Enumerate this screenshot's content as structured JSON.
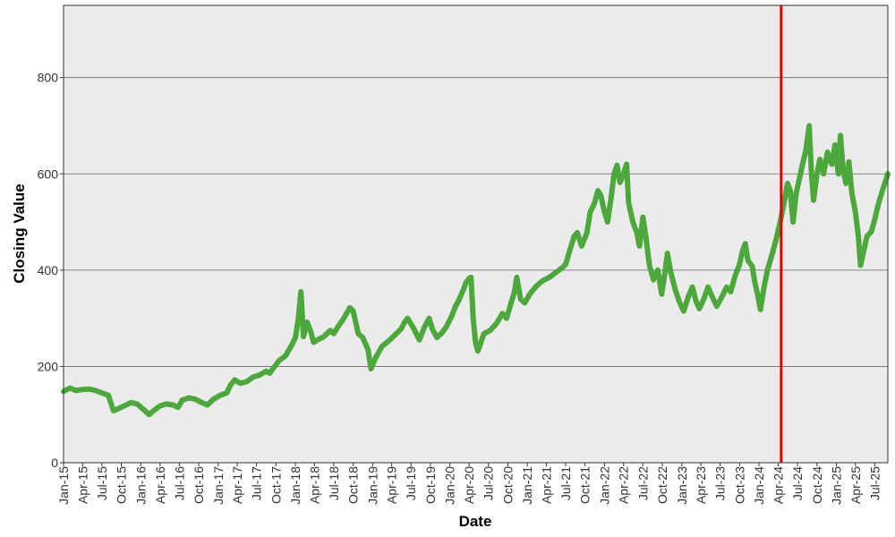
{
  "chart_data": {
    "type": "line",
    "xlabel": "Date",
    "ylabel": "Closing Value",
    "ylim": [
      0,
      950
    ],
    "xlim": [
      "2015-01-01",
      "2025-09-01"
    ],
    "y_ticks": [
      0,
      200,
      400,
      600,
      800
    ],
    "x_ticks": [
      {
        "date": "2015-01-01",
        "label": "Jan-15"
      },
      {
        "date": "2015-04-01",
        "label": "Apr-15"
      },
      {
        "date": "2015-07-01",
        "label": "Jul-15"
      },
      {
        "date": "2015-10-01",
        "label": "Oct-15"
      },
      {
        "date": "2016-01-01",
        "label": "Jan-16"
      },
      {
        "date": "2016-04-01",
        "label": "Apr-16"
      },
      {
        "date": "2016-07-01",
        "label": "Jul-16"
      },
      {
        "date": "2016-10-01",
        "label": "Oct-16"
      },
      {
        "date": "2017-01-01",
        "label": "Jan-17"
      },
      {
        "date": "2017-04-01",
        "label": "Apr-17"
      },
      {
        "date": "2017-07-01",
        "label": "Jul-17"
      },
      {
        "date": "2017-10-01",
        "label": "Oct-17"
      },
      {
        "date": "2018-01-01",
        "label": "Jan-18"
      },
      {
        "date": "2018-04-01",
        "label": "Apr-18"
      },
      {
        "date": "2018-07-01",
        "label": "Jul-18"
      },
      {
        "date": "2018-10-01",
        "label": "Oct-18"
      },
      {
        "date": "2019-01-01",
        "label": "Jan-19"
      },
      {
        "date": "2019-04-01",
        "label": "Apr-19"
      },
      {
        "date": "2019-07-01",
        "label": "Jul-19"
      },
      {
        "date": "2019-10-01",
        "label": "Oct-19"
      },
      {
        "date": "2020-01-01",
        "label": "Jan-20"
      },
      {
        "date": "2020-04-01",
        "label": "Apr-20"
      },
      {
        "date": "2020-07-01",
        "label": "Jul-20"
      },
      {
        "date": "2020-10-01",
        "label": "Oct-20"
      },
      {
        "date": "2021-01-01",
        "label": "Jan-21"
      },
      {
        "date": "2021-04-01",
        "label": "Apr-21"
      },
      {
        "date": "2021-07-01",
        "label": "Jul-21"
      },
      {
        "date": "2021-10-01",
        "label": "Oct-21"
      },
      {
        "date": "2022-01-01",
        "label": "Jan-22"
      },
      {
        "date": "2022-04-01",
        "label": "Apr-22"
      },
      {
        "date": "2022-07-01",
        "label": "Jul-22"
      },
      {
        "date": "2022-10-01",
        "label": "Oct-22"
      },
      {
        "date": "2023-01-01",
        "label": "Jan-23"
      },
      {
        "date": "2023-04-01",
        "label": "Apr-23"
      },
      {
        "date": "2023-07-01",
        "label": "Jul-23"
      },
      {
        "date": "2023-10-01",
        "label": "Oct-23"
      },
      {
        "date": "2024-01-01",
        "label": "Jan-24"
      },
      {
        "date": "2024-04-01",
        "label": "Apr-24"
      },
      {
        "date": "2024-07-01",
        "label": "Jul-24"
      },
      {
        "date": "2024-10-01",
        "label": "Oct-24"
      },
      {
        "date": "2025-01-01",
        "label": "Jan-25"
      },
      {
        "date": "2025-04-01",
        "label": "Apr-25"
      },
      {
        "date": "2025-07-01",
        "label": "Jul-25"
      }
    ],
    "grid": "horizontal",
    "series": [
      {
        "color": "#4ca83a",
        "points": [
          [
            "2015-01-01",
            148
          ],
          [
            "2015-02-01",
            155
          ],
          [
            "2015-03-01",
            150
          ],
          [
            "2015-04-01",
            152
          ],
          [
            "2015-05-01",
            153
          ],
          [
            "2015-06-01",
            150
          ],
          [
            "2015-07-01",
            145
          ],
          [
            "2015-08-01",
            140
          ],
          [
            "2015-08-25",
            108
          ],
          [
            "2015-09-15",
            112
          ],
          [
            "2015-10-15",
            118
          ],
          [
            "2015-11-15",
            125
          ],
          [
            "2015-12-15",
            122
          ],
          [
            "2016-01-15",
            110
          ],
          [
            "2016-02-10",
            100
          ],
          [
            "2016-03-01",
            108
          ],
          [
            "2016-04-01",
            118
          ],
          [
            "2016-05-01",
            122
          ],
          [
            "2016-06-01",
            120
          ],
          [
            "2016-06-25",
            115
          ],
          [
            "2016-07-15",
            130
          ],
          [
            "2016-08-15",
            135
          ],
          [
            "2016-09-15",
            132
          ],
          [
            "2016-10-15",
            125
          ],
          [
            "2016-11-10",
            120
          ],
          [
            "2016-12-10",
            132
          ],
          [
            "2017-01-10",
            140
          ],
          [
            "2017-02-10",
            145
          ],
          [
            "2017-03-01",
            162
          ],
          [
            "2017-03-20",
            172
          ],
          [
            "2017-04-15",
            165
          ],
          [
            "2017-05-15",
            168
          ],
          [
            "2017-06-15",
            178
          ],
          [
            "2017-07-15",
            182
          ],
          [
            "2017-08-15",
            190
          ],
          [
            "2017-09-01",
            186
          ],
          [
            "2017-09-20",
            197
          ],
          [
            "2017-10-15",
            212
          ],
          [
            "2017-11-15",
            222
          ],
          [
            "2017-12-15",
            245
          ],
          [
            "2018-01-01",
            260
          ],
          [
            "2018-01-15",
            300
          ],
          [
            "2018-01-27",
            355
          ],
          [
            "2018-02-08",
            262
          ],
          [
            "2018-02-25",
            292
          ],
          [
            "2018-03-15",
            272
          ],
          [
            "2018-03-28",
            250
          ],
          [
            "2018-04-15",
            255
          ],
          [
            "2018-05-15",
            262
          ],
          [
            "2018-06-15",
            275
          ],
          [
            "2018-07-01",
            268
          ],
          [
            "2018-07-20",
            282
          ],
          [
            "2018-08-15",
            298
          ],
          [
            "2018-09-15",
            322
          ],
          [
            "2018-10-01",
            315
          ],
          [
            "2018-10-25",
            268
          ],
          [
            "2018-11-15",
            260
          ],
          [
            "2018-12-10",
            235
          ],
          [
            "2018-12-24",
            195
          ],
          [
            "2019-01-15",
            218
          ],
          [
            "2019-02-15",
            242
          ],
          [
            "2019-03-15",
            252
          ],
          [
            "2019-04-15",
            265
          ],
          [
            "2019-05-15",
            278
          ],
          [
            "2019-06-01",
            292
          ],
          [
            "2019-06-15",
            300
          ],
          [
            "2019-07-15",
            278
          ],
          [
            "2019-08-10",
            255
          ],
          [
            "2019-09-01",
            280
          ],
          [
            "2019-09-25",
            300
          ],
          [
            "2019-10-10",
            278
          ],
          [
            "2019-11-01",
            260
          ],
          [
            "2019-11-25",
            270
          ],
          [
            "2019-12-15",
            282
          ],
          [
            "2020-01-10",
            305
          ],
          [
            "2020-01-28",
            325
          ],
          [
            "2020-02-15",
            340
          ],
          [
            "2020-03-05",
            360
          ],
          [
            "2020-03-18",
            375
          ],
          [
            "2020-04-01",
            383
          ],
          [
            "2020-04-10",
            385
          ],
          [
            "2020-04-20",
            300
          ],
          [
            "2020-05-01",
            250
          ],
          [
            "2020-05-12",
            232
          ],
          [
            "2020-06-10",
            268
          ],
          [
            "2020-07-10",
            275
          ],
          [
            "2020-08-10",
            290
          ],
          [
            "2020-09-05",
            310
          ],
          [
            "2020-09-25",
            300
          ],
          [
            "2020-10-15",
            330
          ],
          [
            "2020-11-01",
            355
          ],
          [
            "2020-11-12",
            385
          ],
          [
            "2020-11-30",
            340
          ],
          [
            "2020-12-20",
            332
          ],
          [
            "2021-01-15",
            352
          ],
          [
            "2021-02-15",
            368
          ],
          [
            "2021-03-15",
            378
          ],
          [
            "2021-04-15",
            385
          ],
          [
            "2021-05-15",
            395
          ],
          [
            "2021-06-15",
            405
          ],
          [
            "2021-07-01",
            412
          ],
          [
            "2021-07-20",
            440
          ],
          [
            "2021-08-10",
            470
          ],
          [
            "2021-08-25",
            478
          ],
          [
            "2021-09-15",
            450
          ],
          [
            "2021-10-10",
            478
          ],
          [
            "2021-10-25",
            520
          ],
          [
            "2021-11-15",
            540
          ],
          [
            "2021-12-01",
            565
          ],
          [
            "2021-12-15",
            555
          ],
          [
            "2022-01-01",
            520
          ],
          [
            "2022-01-15",
            500
          ],
          [
            "2022-02-01",
            550
          ],
          [
            "2022-02-15",
            600
          ],
          [
            "2022-03-01",
            618
          ],
          [
            "2022-03-15",
            582
          ],
          [
            "2022-04-01",
            600
          ],
          [
            "2022-04-15",
            620
          ],
          [
            "2022-04-25",
            540
          ],
          [
            "2022-05-15",
            500
          ],
          [
            "2022-06-01",
            480
          ],
          [
            "2022-06-15",
            450
          ],
          [
            "2022-07-01",
            510
          ],
          [
            "2022-07-15",
            470
          ],
          [
            "2022-08-01",
            410
          ],
          [
            "2022-08-20",
            380
          ],
          [
            "2022-09-10",
            400
          ],
          [
            "2022-09-28",
            350
          ],
          [
            "2022-10-15",
            400
          ],
          [
            "2022-10-25",
            435
          ],
          [
            "2022-11-10",
            395
          ],
          [
            "2022-12-01",
            360
          ],
          [
            "2022-12-20",
            335
          ],
          [
            "2023-01-10",
            315
          ],
          [
            "2023-02-01",
            345
          ],
          [
            "2023-02-20",
            365
          ],
          [
            "2023-03-10",
            335
          ],
          [
            "2023-03-25",
            320
          ],
          [
            "2023-04-15",
            340
          ],
          [
            "2023-05-05",
            365
          ],
          [
            "2023-05-25",
            345
          ],
          [
            "2023-06-15",
            325
          ],
          [
            "2023-07-10",
            345
          ],
          [
            "2023-08-01",
            365
          ],
          [
            "2023-08-20",
            355
          ],
          [
            "2023-09-10",
            388
          ],
          [
            "2023-10-01",
            412
          ],
          [
            "2023-10-15",
            440
          ],
          [
            "2023-10-28",
            455
          ],
          [
            "2023-11-10",
            420
          ],
          [
            "2023-11-30",
            408
          ],
          [
            "2023-12-10",
            380
          ],
          [
            "2023-12-25",
            350
          ],
          [
            "2024-01-08",
            318
          ],
          [
            "2024-01-25",
            365
          ],
          [
            "2024-02-10",
            400
          ],
          [
            "2024-03-01",
            430
          ],
          [
            "2024-03-20",
            460
          ],
          [
            "2024-04-10",
            500
          ],
          [
            "2024-05-01",
            545
          ],
          [
            "2024-05-15",
            580
          ],
          [
            "2024-05-28",
            565
          ],
          [
            "2024-06-10",
            500
          ],
          [
            "2024-06-25",
            560
          ],
          [
            "2024-07-10",
            590
          ],
          [
            "2024-07-25",
            620
          ],
          [
            "2024-08-10",
            650
          ],
          [
            "2024-08-25",
            700
          ],
          [
            "2024-09-05",
            600
          ],
          [
            "2024-09-15",
            545
          ],
          [
            "2024-10-01",
            600
          ],
          [
            "2024-10-15",
            630
          ],
          [
            "2024-11-01",
            600
          ],
          [
            "2024-11-20",
            645
          ],
          [
            "2024-12-10",
            620
          ],
          [
            "2024-12-25",
            660
          ],
          [
            "2025-01-10",
            600
          ],
          [
            "2025-01-20",
            680
          ],
          [
            "2025-02-01",
            610
          ],
          [
            "2025-02-15",
            580
          ],
          [
            "2025-03-01",
            625
          ],
          [
            "2025-03-15",
            560
          ],
          [
            "2025-04-01",
            520
          ],
          [
            "2025-04-15",
            470
          ],
          [
            "2025-04-25",
            410
          ],
          [
            "2025-05-10",
            440
          ],
          [
            "2025-05-25",
            470
          ],
          [
            "2025-06-15",
            480
          ],
          [
            "2025-07-01",
            505
          ],
          [
            "2025-07-20",
            540
          ],
          [
            "2025-08-10",
            570
          ],
          [
            "2025-08-25",
            590
          ],
          [
            "2025-09-01",
            600
          ]
        ]
      }
    ],
    "vertical_marker": {
      "date": "2024-04-15",
      "color": "#dd0000"
    },
    "colors": {
      "plot_background": "#ebebeb",
      "grid": "#666666",
      "frame": "#333333"
    }
  }
}
